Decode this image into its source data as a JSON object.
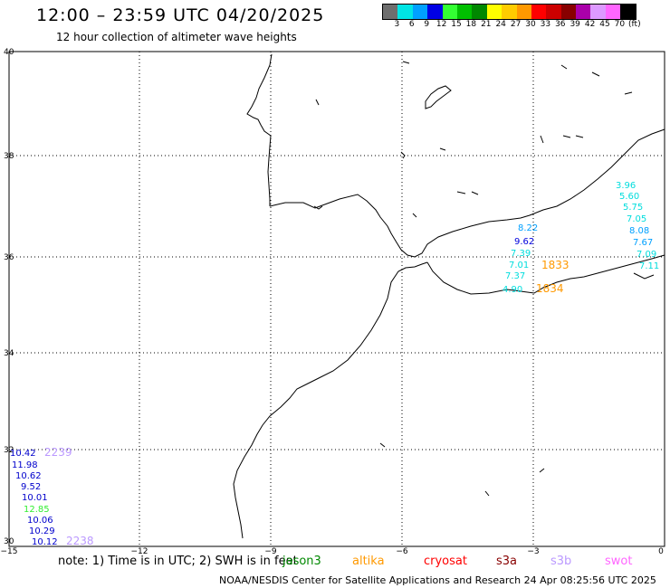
{
  "header": {
    "title": "12:00 – 23:59 UTC 04/20/2025",
    "subtitle": "12 hour collection of altimeter wave heights"
  },
  "legend": {
    "colors": [
      "#6e6e6e",
      "#00e5e5",
      "#00a0ff",
      "#0000e5",
      "#33ff33",
      "#00c000",
      "#008800",
      "#ffff00",
      "#ffcc00",
      "#ff9900",
      "#ff0000",
      "#cc0000",
      "#880000",
      "#aa00aa",
      "#dd99ff",
      "#ff66ff",
      "#000000"
    ],
    "ticks": [
      "3",
      "6",
      "9",
      "12",
      "15",
      "18",
      "21",
      "24",
      "27",
      "30",
      "33",
      "36",
      "39",
      "42",
      "45",
      "70",
      "(ft)"
    ]
  },
  "axes": {
    "lat_labels": [
      "40",
      "38",
      "36",
      "34",
      "32",
      "30"
    ],
    "lon_labels": [
      "−15",
      "−12",
      "−9",
      "−6",
      "−3",
      "0"
    ]
  },
  "observations": {
    "east_group": [
      {
        "text": "3.96",
        "color": "#00dddd"
      },
      {
        "text": "5.60",
        "color": "#00dddd"
      },
      {
        "text": "5.75",
        "color": "#00dddd"
      },
      {
        "text": "7.05",
        "color": "#00dddd"
      },
      {
        "text": "8.08",
        "color": "#00a0ff"
      },
      {
        "text": "7.67",
        "color": "#00a0ff"
      },
      {
        "text": "7.09",
        "color": "#00dddd"
      },
      {
        "text": "7.11",
        "color": "#00dddd"
      }
    ],
    "strait_group": [
      {
        "text": "8.22",
        "color": "#00a0ff"
      },
      {
        "text": "9.62",
        "color": "#0000dd"
      },
      {
        "text": "7.39",
        "color": "#00dddd"
      },
      {
        "text": "7.01",
        "color": "#00dddd"
      },
      {
        "text": "7.37",
        "color": "#00dddd"
      },
      {
        "text": "4.90",
        "color": "#00dddd"
      }
    ],
    "west_group": [
      {
        "text": "10.42",
        "color": "#0000cc"
      },
      {
        "text": "11.98",
        "color": "#0000cc"
      },
      {
        "text": "10.62",
        "color": "#0000cc"
      },
      {
        "text": "9.52",
        "color": "#0000cc"
      },
      {
        "text": "10.01",
        "color": "#0000cc"
      },
      {
        "text": "12.85",
        "color": "#33ee33"
      },
      {
        "text": "10.06",
        "color": "#0000cc"
      },
      {
        "text": "10.29",
        "color": "#0000cc"
      },
      {
        "text": "10.12",
        "color": "#0000cc"
      }
    ],
    "time_labels": [
      {
        "text": "1833",
        "color": "#ff9900"
      },
      {
        "text": "1834",
        "color": "#ff9900"
      },
      {
        "text": "2239",
        "color": "#bb99ff"
      },
      {
        "text": "2238",
        "color": "#bb99ff"
      }
    ]
  },
  "note": "note: 1) Time is in UTC; 2) SWH is in feet",
  "satellites": [
    {
      "name": "jason3",
      "color": "#008800"
    },
    {
      "name": "altika",
      "color": "#ff9900"
    },
    {
      "name": "cryosat",
      "color": "#ff0000"
    },
    {
      "name": "s3a",
      "color": "#880000"
    },
    {
      "name": "s3b",
      "color": "#bb99ff"
    },
    {
      "name": "swot",
      "color": "#ff66ff"
    }
  ],
  "footer": "NOAA/NESDIS Center for Satellite Applications and Research    24 Apr 08:25:56 UTC 2025"
}
